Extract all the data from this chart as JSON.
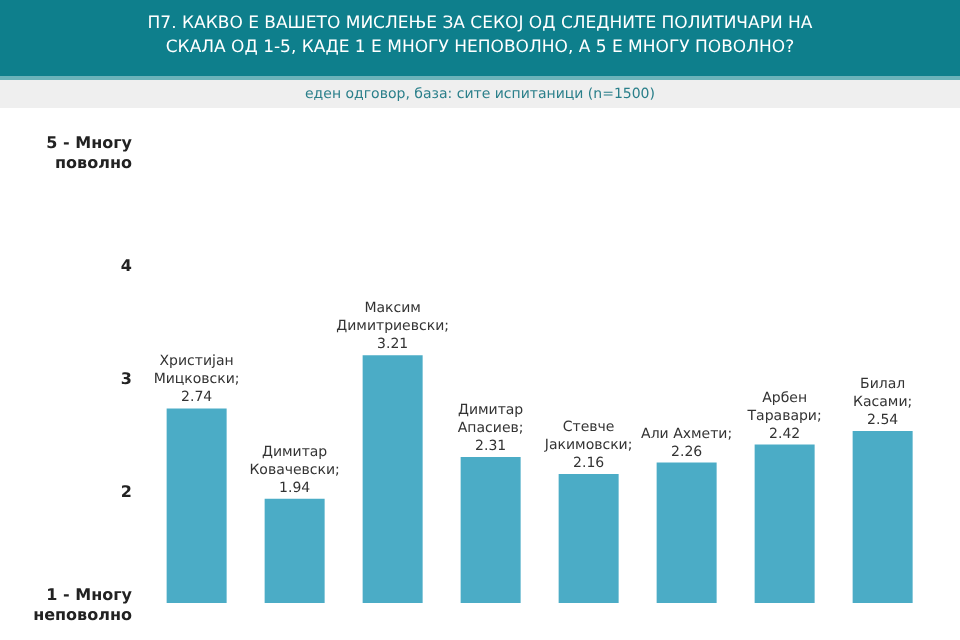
{
  "chart_data": {
    "type": "bar",
    "title": "П7. КАКВО Е ВАШЕТО МИСЛЕЊЕ ЗА СЕКОЈ ОД СЛЕДНИТЕ ПОЛИТИЧАРИ НА СКАЛА ОД 1-5, КАДЕ 1 Е МНОГУ НЕПОВОЛНО, А 5 Е МНОГУ ПОВОЛНО?",
    "subtitle": "еден одговор, база: сите испитаници (n=1500)",
    "categories": [
      null,
      null,
      null,
      null,
      null,
      null,
      null,
      null
    ],
    "values": [
      2.74,
      1.94,
      3.21,
      2.31,
      2.16,
      2.26,
      2.42,
      2.54
    ],
    "color": "#4bacc6",
    "value_labels": [
      "Христијан Мицковски; 2.74",
      "Димитар Ковачевски; 1.94",
      "Максим Димитриевски; 3.21",
      "Димитар Апасиев; 2.31",
      "Стевче Јакимовски; 2.16",
      "Али Ахмети; 2.26",
      "Арбен Таравари; 2.42",
      "Билал Касами; 2.54"
    ],
    "ylim": [
      1,
      5
    ],
    "yticks": [
      {
        "value": 1,
        "label": "1 - Многу неповолно"
      },
      2,
      3,
      4,
      {
        "value": 5,
        "label": "5 - Многу поволно"
      }
    ],
    "grid": false,
    "tick_labels": "y"
  }
}
